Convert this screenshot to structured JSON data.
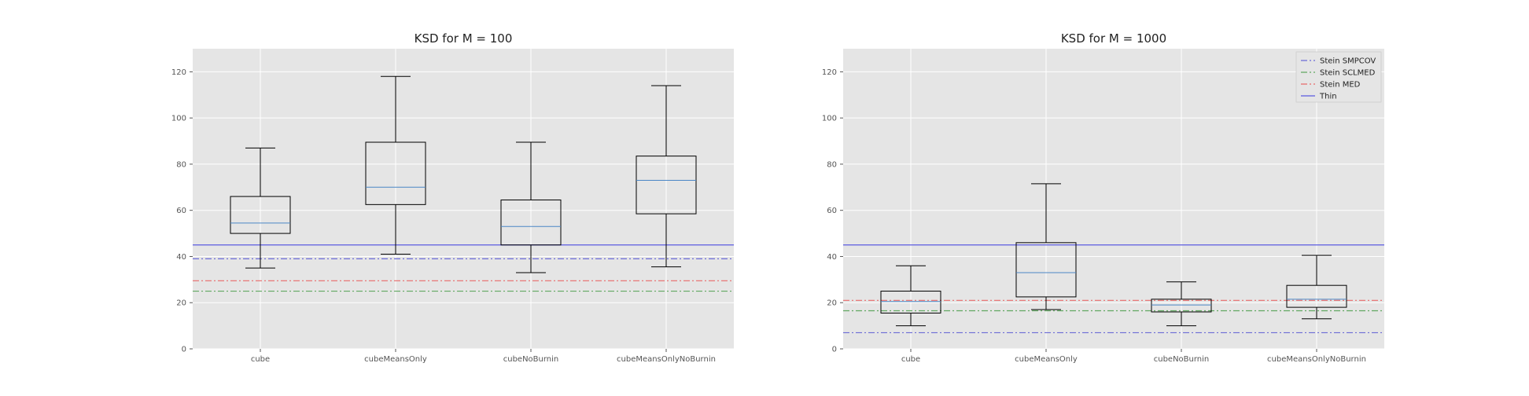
{
  "chart_data": [
    {
      "type": "boxplot",
      "title": "KSD for M = 100",
      "categories": [
        "cube",
        "cubeMeansOnly",
        "cubeNoBurnin",
        "cubeMeansOnlyNoBurnin"
      ],
      "ylim": [
        0,
        130
      ],
      "yticks": [
        0,
        20,
        40,
        60,
        80,
        100,
        120
      ],
      "grid": true,
      "boxes": [
        {
          "whisker_low": 35,
          "q1": 50,
          "median": 54.5,
          "q3": 66,
          "whisker_high": 87
        },
        {
          "whisker_low": 41,
          "q1": 62.5,
          "median": 70,
          "q3": 89.5,
          "whisker_high": 118
        },
        {
          "whisker_low": 33,
          "q1": 45,
          "median": 53,
          "q3": 64.5,
          "whisker_high": 89.5
        },
        {
          "whisker_low": 35.5,
          "q1": 58.5,
          "median": 73,
          "q3": 83.5,
          "whisker_high": 114
        }
      ],
      "reference_lines": [
        {
          "name": "Stein SMPCOV",
          "value": 39,
          "color": "#6b6bd6",
          "style": "dashdot"
        },
        {
          "name": "Stein SCLMED",
          "value": 25,
          "color": "#62a862",
          "style": "dashdot"
        },
        {
          "name": "Stein MED",
          "value": 29.5,
          "color": "#e86a6a",
          "style": "dashdot"
        },
        {
          "name": "Thin",
          "value": 45,
          "color": "#5b5be0",
          "style": "solid"
        }
      ]
    },
    {
      "type": "boxplot",
      "title": "KSD for M = 1000",
      "categories": [
        "cube",
        "cubeMeansOnly",
        "cubeNoBurnin",
        "cubeMeansOnlyNoBurnin"
      ],
      "ylim": [
        0,
        130
      ],
      "yticks": [
        0,
        20,
        40,
        60,
        80,
        100,
        120
      ],
      "grid": true,
      "legend_position": "top-right",
      "legend": [
        "Stein SMPCOV",
        "Stein SCLMED",
        "Stein MED",
        "Thin"
      ],
      "boxes": [
        {
          "whisker_low": 10,
          "q1": 15.5,
          "median": 20.5,
          "q3": 25,
          "whisker_high": 36
        },
        {
          "whisker_low": 17,
          "q1": 22.5,
          "median": 33,
          "q3": 46,
          "whisker_high": 71.5
        },
        {
          "whisker_low": 10,
          "q1": 16,
          "median": 19,
          "q3": 21.5,
          "whisker_high": 29
        },
        {
          "whisker_low": 13,
          "q1": 18,
          "median": 21.5,
          "q3": 27.5,
          "whisker_high": 40.5
        }
      ],
      "reference_lines": [
        {
          "name": "Stein SMPCOV",
          "value": 7,
          "color": "#6b6bd6",
          "style": "dashdot"
        },
        {
          "name": "Stein SCLMED",
          "value": 16.5,
          "color": "#62a862",
          "style": "dashdot"
        },
        {
          "name": "Stein MED",
          "value": 21,
          "color": "#e86a6a",
          "style": "dashdot"
        },
        {
          "name": "Thin",
          "value": 45,
          "color": "#5b5be0",
          "style": "solid"
        }
      ]
    }
  ],
  "colors": {
    "plot_background": "#e5e5e5",
    "grid": "#ffffff",
    "box": "#000000",
    "median": "#4a86c5"
  }
}
